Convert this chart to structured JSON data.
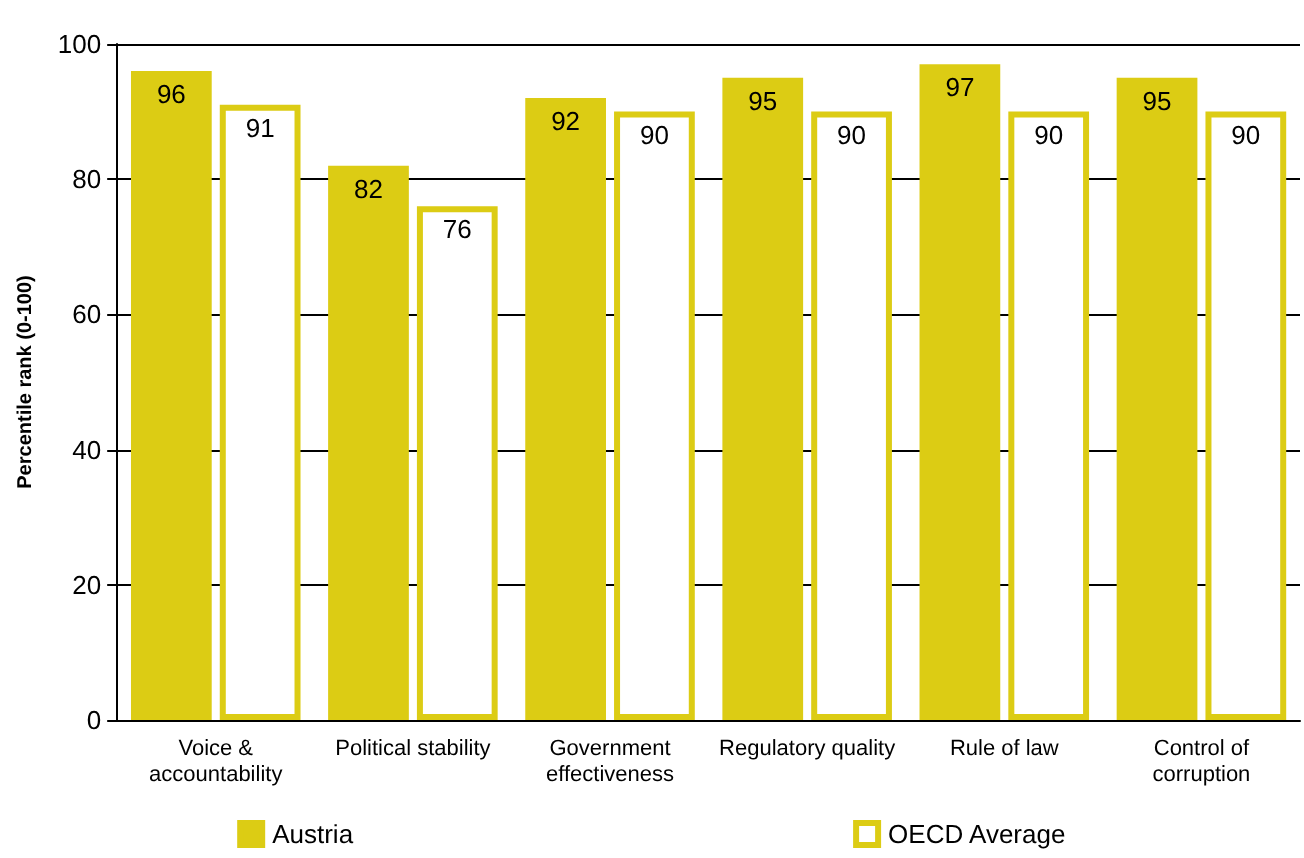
{
  "chart_data": {
    "type": "bar",
    "ylabel": "Percentile rank (0-100)",
    "categories": [
      "Voice &\naccountability",
      "Political stability",
      "Government\neffectiveness",
      "Regulatory quality",
      "Rule of law",
      "Control of\ncorruption"
    ],
    "series": [
      {
        "name": "Austria",
        "color": "#dccc14",
        "values": [
          96,
          82,
          92,
          95,
          97,
          95
        ]
      },
      {
        "name": "OECD Average",
        "color": "#ffffff",
        "values": [
          91,
          76,
          90,
          90,
          90,
          90
        ]
      }
    ],
    "ylim": [
      0,
      100
    ],
    "yticks": [
      0,
      20,
      40,
      60,
      80,
      100
    ],
    "grid": "y",
    "legend": "bottom",
    "data_labels": true
  }
}
